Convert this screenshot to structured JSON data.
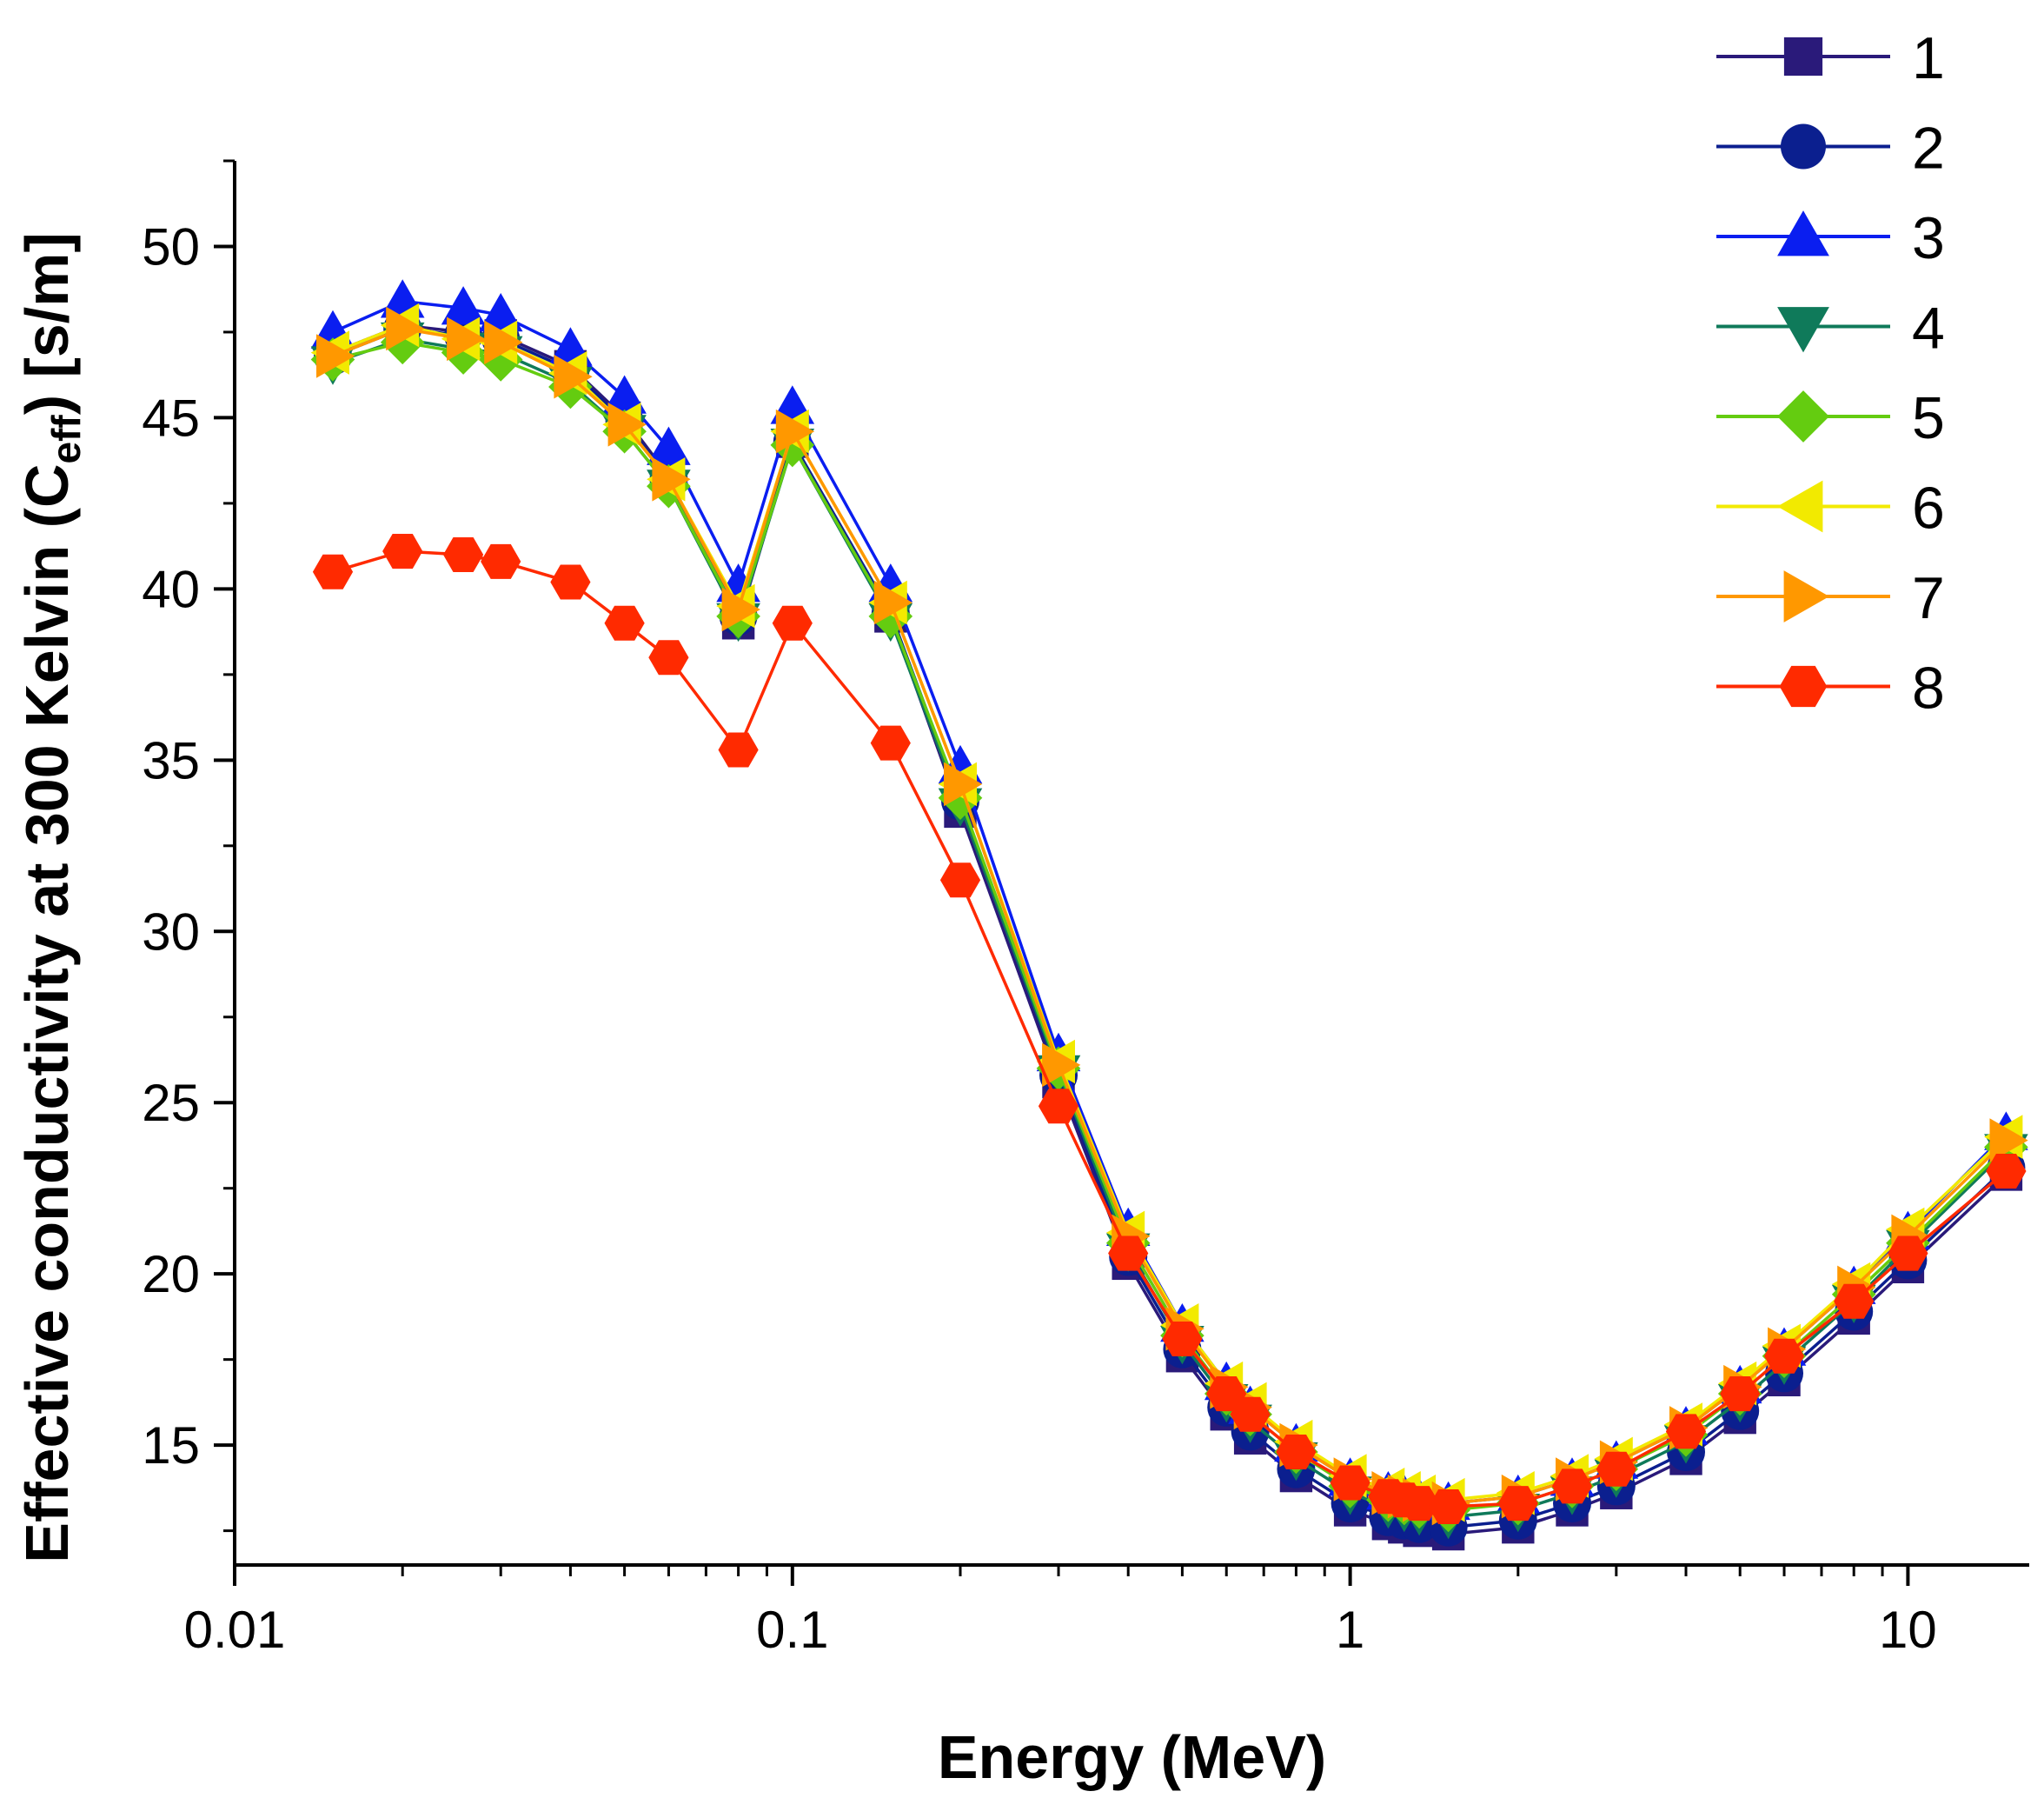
{
  "chart_data": {
    "type": "line",
    "title": "",
    "xlabel": "Energy (MeV)",
    "ylabel": {
      "pre": "Effective conductivity at 300 Kelvin (C",
      "sub": "eff",
      "post": ") [s/m]"
    },
    "xscale": "log",
    "xlim": [
      0.01,
      16.5
    ],
    "ylim": [
      11.5,
      52.5
    ],
    "xticks": [
      {
        "value": 0.01,
        "label": "0.01"
      },
      {
        "value": 0.1,
        "label": "0.1"
      },
      {
        "value": 1,
        "label": "1"
      },
      {
        "value": 10,
        "label": "10"
      }
    ],
    "yticks": [
      {
        "value": 15,
        "label": "15"
      },
      {
        "value": 20,
        "label": "20"
      },
      {
        "value": 25,
        "label": "25"
      },
      {
        "value": 30,
        "label": "30"
      },
      {
        "value": 35,
        "label": "35"
      },
      {
        "value": 40,
        "label": "40"
      },
      {
        "value": 45,
        "label": "45"
      },
      {
        "value": 50,
        "label": "50"
      }
    ],
    "grid": false,
    "legend_position": "top-right",
    "x": [
      0.015,
      0.02,
      0.0257,
      0.03,
      0.04,
      0.05,
      0.06,
      0.08,
      0.1,
      0.15,
      0.2,
      0.3,
      0.4,
      0.5,
      0.6,
      0.662,
      0.8,
      1.0,
      1.17,
      1.25,
      1.33,
      1.5,
      2.0,
      2.5,
      3.0,
      4.0,
      5.0,
      6.0,
      8.0,
      10.0,
      15.0
    ],
    "series": [
      {
        "name": "1",
        "marker": "square",
        "color": "#2a1a7a",
        "values": [
          46.9,
          47.7,
          47.5,
          47.4,
          46.5,
          45.0,
          43.3,
          39.0,
          44.3,
          39.2,
          33.5,
          25.6,
          20.3,
          17.6,
          15.9,
          15.2,
          14.1,
          13.1,
          12.7,
          12.6,
          12.5,
          12.4,
          12.6,
          13.1,
          13.6,
          14.6,
          15.8,
          16.9,
          18.7,
          20.2,
          22.9
        ]
      },
      {
        "name": "2",
        "marker": "circle",
        "color": "#0b1f8f",
        "values": [
          46.8,
          47.6,
          47.4,
          47.3,
          46.4,
          44.9,
          43.2,
          39.2,
          44.3,
          39.3,
          33.8,
          25.8,
          20.5,
          17.8,
          16.1,
          15.4,
          14.3,
          13.3,
          12.9,
          12.8,
          12.7,
          12.6,
          12.8,
          13.3,
          13.8,
          14.8,
          16.0,
          17.1,
          18.9,
          20.4,
          23.1
        ]
      },
      {
        "name": "3",
        "marker": "triangle-up",
        "color": "#0a1ef0",
        "values": [
          47.5,
          48.4,
          48.2,
          48.0,
          47.0,
          45.6,
          44.1,
          40.1,
          45.3,
          40.1,
          34.8,
          26.4,
          21.3,
          18.5,
          16.8,
          16.1,
          15.0,
          14.0,
          13.6,
          13.5,
          13.4,
          13.3,
          13.5,
          14.0,
          14.5,
          15.5,
          16.7,
          17.8,
          19.6,
          21.2,
          24.1
        ]
      },
      {
        "name": "4",
        "marker": "triangle-down",
        "color": "#0f7a5a",
        "values": [
          46.6,
          47.3,
          47.0,
          46.9,
          46.0,
          44.6,
          43.0,
          39.1,
          44.2,
          39.1,
          33.7,
          25.9,
          20.7,
          18.0,
          16.3,
          15.7,
          14.6,
          13.6,
          13.2,
          13.1,
          13.0,
          12.9,
          13.1,
          13.6,
          14.1,
          15.1,
          16.3,
          17.4,
          19.2,
          20.8,
          23.6
        ]
      },
      {
        "name": "5",
        "marker": "diamond",
        "color": "#64cc10",
        "values": [
          46.7,
          47.2,
          46.9,
          46.7,
          45.9,
          44.6,
          43.0,
          39.2,
          44.2,
          39.2,
          33.9,
          26.0,
          20.9,
          18.2,
          16.5,
          15.9,
          14.8,
          13.8,
          13.4,
          13.3,
          13.2,
          13.1,
          13.3,
          13.8,
          14.3,
          15.3,
          16.5,
          17.6,
          19.4,
          20.9,
          23.7
        ]
      },
      {
        "name": "6",
        "marker": "triangle-left",
        "color": "#f2ea00",
        "values": [
          46.9,
          47.7,
          47.3,
          47.2,
          46.3,
          44.8,
          43.2,
          39.5,
          44.6,
          39.6,
          34.3,
          26.2,
          21.2,
          18.5,
          16.8,
          16.2,
          15.1,
          14.1,
          13.7,
          13.6,
          13.5,
          13.4,
          13.6,
          14.1,
          14.6,
          15.6,
          16.8,
          17.9,
          19.7,
          21.3,
          24.0
        ]
      },
      {
        "name": "7",
        "marker": "triangle-right",
        "color": "#ff9800",
        "values": [
          46.8,
          47.6,
          47.3,
          47.2,
          46.2,
          44.8,
          43.2,
          39.4,
          44.6,
          39.6,
          34.3,
          26.1,
          21.1,
          18.4,
          16.7,
          16.1,
          15.0,
          14.0,
          13.6,
          13.5,
          13.4,
          13.3,
          13.5,
          14.0,
          14.5,
          15.5,
          16.7,
          17.8,
          19.6,
          21.1,
          23.9
        ]
      },
      {
        "name": "8",
        "marker": "hexagon",
        "color": "#ff2a00",
        "values": [
          40.5,
          41.1,
          41.0,
          40.8,
          40.2,
          39.0,
          38.0,
          35.3,
          39.0,
          35.5,
          31.5,
          24.9,
          20.6,
          18.1,
          16.5,
          15.9,
          14.8,
          13.9,
          13.5,
          13.4,
          13.3,
          13.2,
          13.3,
          13.8,
          14.3,
          15.4,
          16.5,
          17.6,
          19.2,
          20.6,
          23.0
        ]
      }
    ]
  }
}
